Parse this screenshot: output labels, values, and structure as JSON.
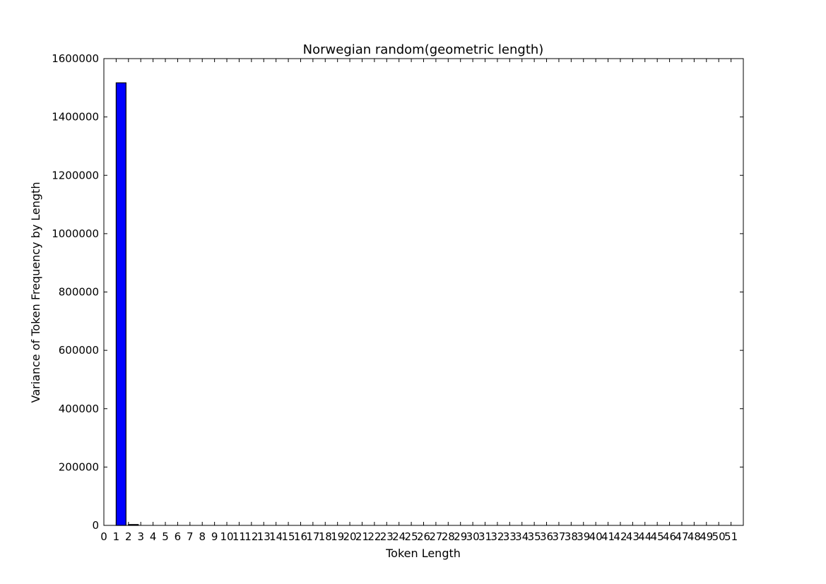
{
  "chart_data": {
    "type": "bar",
    "title": "Norwegian random(geometric length)",
    "xlabel": "Token Length",
    "ylabel": "Variance of Token Frequency by Length",
    "x": [
      1,
      2
    ],
    "values": [
      1517000,
      3000
    ],
    "bar_color": "#0000ff",
    "edge_color": "#000000",
    "xlim": [
      0,
      52
    ],
    "ylim": [
      0,
      1600000
    ],
    "xticks": [
      0,
      1,
      2,
      3,
      4,
      5,
      6,
      7,
      8,
      9,
      10,
      11,
      12,
      13,
      14,
      15,
      16,
      17,
      18,
      19,
      20,
      21,
      22,
      23,
      24,
      25,
      26,
      27,
      28,
      29,
      30,
      31,
      32,
      33,
      34,
      35,
      36,
      37,
      38,
      39,
      40,
      41,
      42,
      43,
      44,
      45,
      46,
      47,
      48,
      49,
      50,
      51
    ],
    "yticks": [
      0,
      200000,
      400000,
      600000,
      800000,
      1000000,
      1200000,
      1400000,
      1600000
    ],
    "grid": false,
    "legend": "none"
  }
}
